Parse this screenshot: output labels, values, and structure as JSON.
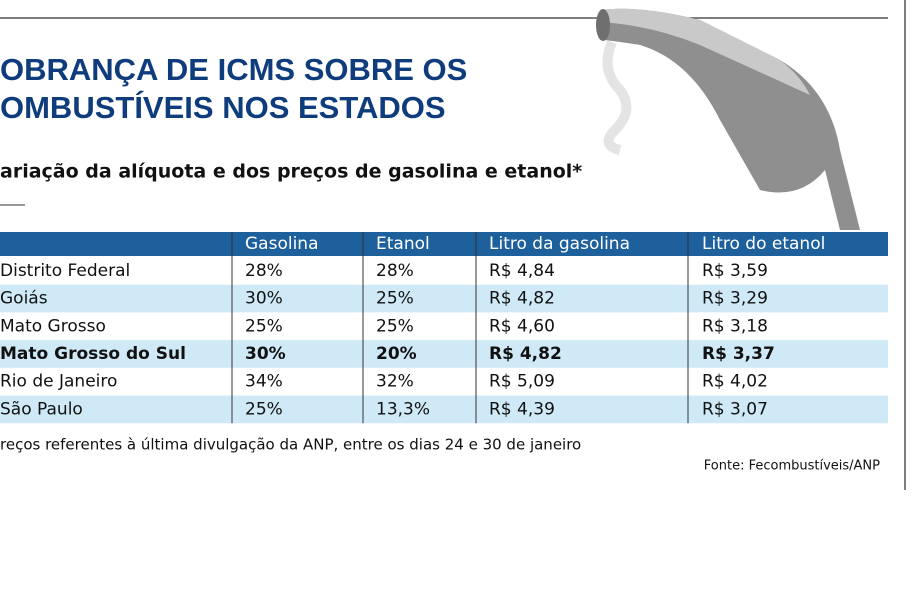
{
  "header": {
    "title_lines": [
      "OBRANÇA DE ICMS SOBRE OS",
      "OMBUSTÍVEIS NOS ESTADOS"
    ],
    "subtitle": "ariação da alíquota e dos preços de gasolina e etanol*"
  },
  "table": {
    "columns": [
      "Gasolina",
      "Etanol",
      "Litro da gasolina",
      "Litro do etanol"
    ],
    "rows": [
      [
        "Distrito Federal",
        "28%",
        "28%",
        "R$ 4,84",
        "R$ 3,59"
      ],
      [
        "Goiás",
        "30%",
        "25%",
        "R$ 4,82",
        "R$ 3,29"
      ],
      [
        "Mato Grosso",
        "25%",
        "25%",
        "R$ 4,60",
        "R$ 3,18"
      ],
      [
        "Mato Grosso do Sul",
        "30%",
        "20%",
        "R$ 4,82",
        "R$ 3,37"
      ],
      [
        "Rio de Janeiro",
        "34%",
        "32%",
        "R$ 5,09",
        "R$ 4,02"
      ],
      [
        "São Paulo",
        "25%",
        "13,3%",
        "R$ 4,39",
        "R$ 3,07"
      ]
    ],
    "bold_rows": [
      3
    ]
  },
  "footnote": "reços referentes à última divulgação da ANP, entre os dias 24 e 30 de janeiro",
  "source": "Fonte: Fecombustíveis/ANP"
}
